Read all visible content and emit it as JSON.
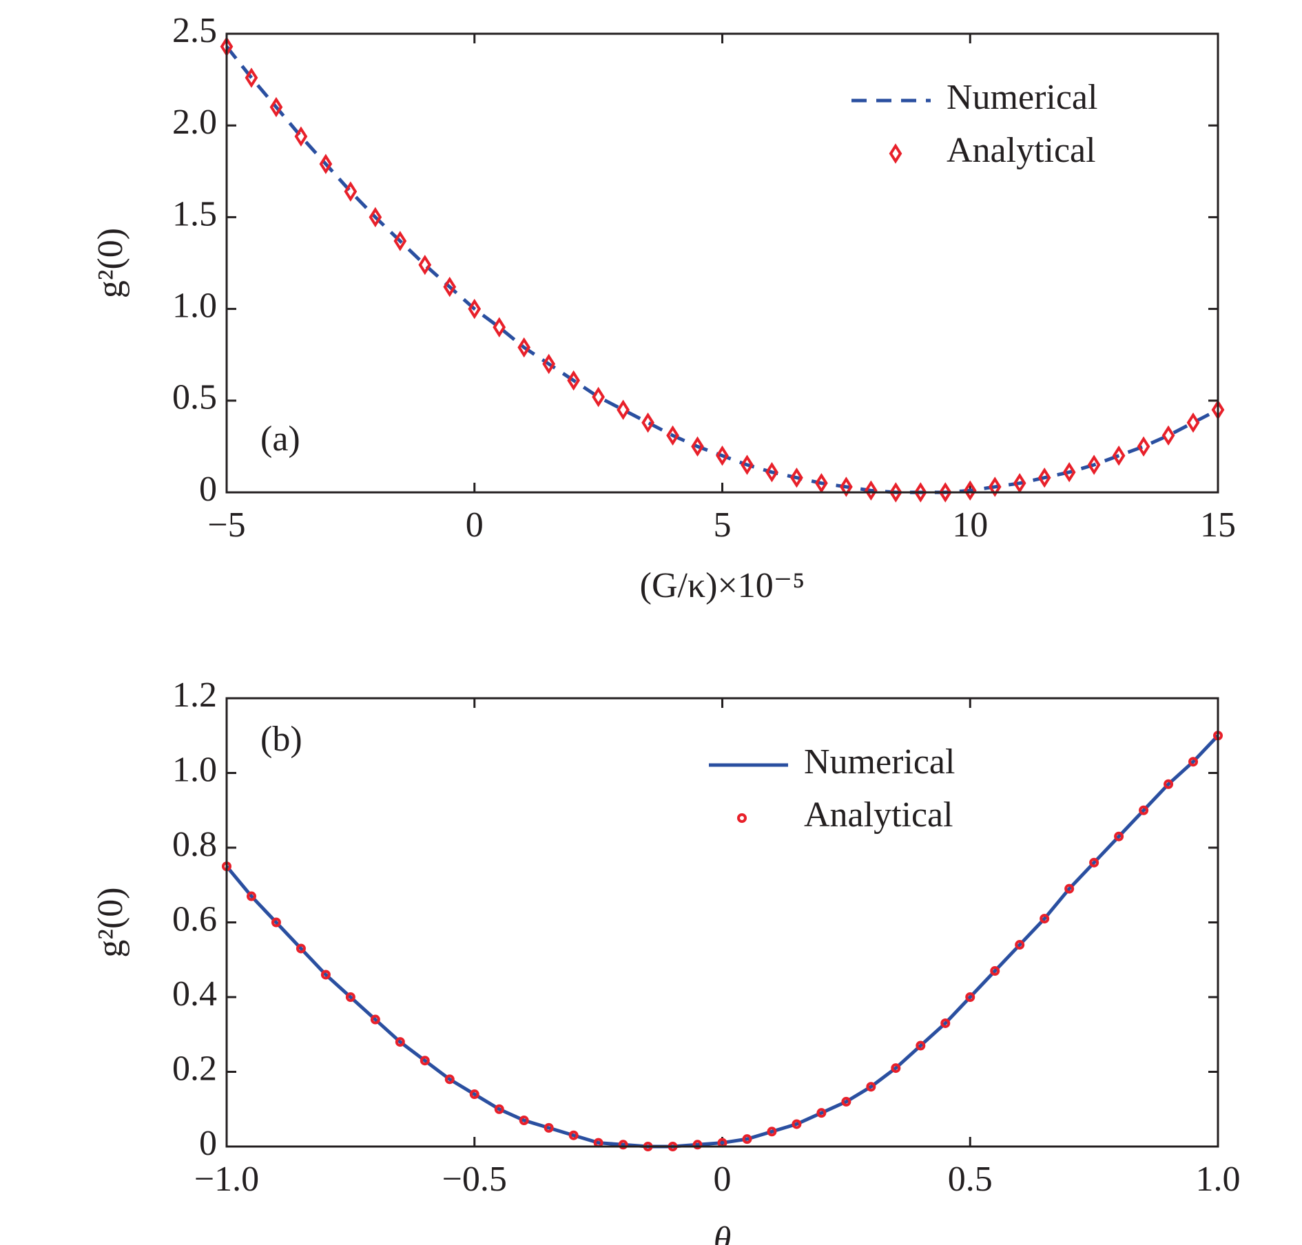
{
  "chart_data": [
    {
      "type": "line",
      "annotation": "(a)",
      "xlabel": "(G/κ)×10⁻⁵",
      "ylabel": "g²(0)",
      "x": [
        -5,
        -4.5,
        -4,
        -3.5,
        -3,
        -2.5,
        -2,
        -1.5,
        -1,
        -0.5,
        0,
        0.5,
        1,
        1.5,
        2,
        2.5,
        3,
        3.5,
        4,
        4.5,
        5,
        5.5,
        6,
        6.5,
        7,
        7.5,
        8,
        8.5,
        9,
        9.5,
        10,
        10.5,
        11,
        11.5,
        12,
        12.5,
        13,
        13.5,
        14,
        14.5,
        15
      ],
      "series": [
        {
          "name": "Numerical",
          "color": "#2a4fa0",
          "line_style": "dashed",
          "values": [
            2.43,
            2.26,
            2.1,
            1.94,
            1.79,
            1.64,
            1.5,
            1.37,
            1.24,
            1.12,
            1.0,
            0.9,
            0.79,
            0.7,
            0.61,
            0.52,
            0.45,
            0.38,
            0.31,
            0.25,
            0.2,
            0.15,
            0.11,
            0.08,
            0.05,
            0.03,
            0.01,
            0.0,
            0,
            0.0,
            0.01,
            0.03,
            0.05,
            0.08,
            0.11,
            0.15,
            0.2,
            0.25,
            0.31,
            0.38,
            0.45
          ]
        },
        {
          "name": "Analytical",
          "color": "#e8202a",
          "marker": "diamond",
          "values": [
            2.43,
            2.26,
            2.1,
            1.94,
            1.79,
            1.64,
            1.5,
            1.37,
            1.24,
            1.12,
            1.0,
            0.9,
            0.79,
            0.7,
            0.61,
            0.52,
            0.45,
            0.38,
            0.31,
            0.25,
            0.2,
            0.15,
            0.11,
            0.08,
            0.05,
            0.03,
            0.01,
            0.0,
            0,
            0.0,
            0.01,
            0.03,
            0.05,
            0.08,
            0.11,
            0.15,
            0.2,
            0.25,
            0.31,
            0.38,
            0.45
          ]
        }
      ],
      "xlim": [
        -5,
        15
      ],
      "xticks": [
        {
          "value": -5,
          "label": "−5"
        },
        0,
        5,
        10,
        15
      ],
      "ylim": [
        0,
        2.5
      ],
      "yticks": [
        0,
        0.5,
        {
          "value": 1,
          "label": "1.0"
        },
        1.5,
        {
          "value": 2,
          "label": "2.0"
        },
        2.5
      ],
      "legend": "upper right"
    },
    {
      "type": "line",
      "annotation": "(b)",
      "xlabel": "θ",
      "ylabel": "g²(0)",
      "x": [
        -1,
        -0.95,
        -0.9,
        -0.85,
        -0.8,
        -0.75,
        -0.7,
        -0.65,
        -0.6,
        -0.55,
        -0.5,
        -0.45,
        -0.4,
        -0.35,
        -0.3,
        -0.25,
        -0.2,
        -0.15,
        -0.1,
        -0.05,
        0,
        0.05,
        0.1,
        0.15,
        0.2,
        0.25,
        0.3,
        0.35,
        0.4,
        0.45,
        0.5,
        0.55,
        0.6,
        0.65,
        0.7,
        0.75,
        0.8,
        0.85,
        0.9,
        0.95,
        1
      ],
      "series": [
        {
          "name": "Numerical",
          "color": "#2a4fa0",
          "line_style": "solid",
          "values": [
            0.75,
            0.67,
            0.6,
            0.53,
            0.46,
            0.4,
            0.34,
            0.28,
            0.23,
            0.18,
            0.14,
            0.1,
            0.07,
            0.05,
            0.03,
            0.01,
            0.005,
            0.0,
            0.0,
            0.005,
            0.01,
            0.02,
            0.04,
            0.06,
            0.09,
            0.12,
            0.16,
            0.21,
            0.27,
            0.33,
            0.4,
            0.47,
            0.54,
            0.61,
            0.69,
            0.76,
            0.83,
            0.9,
            0.97,
            1.03,
            1.1
          ]
        },
        {
          "name": "Analytical",
          "color": "#e8202a",
          "marker": "circle",
          "values": [
            0.75,
            0.67,
            0.6,
            0.53,
            0.46,
            0.4,
            0.34,
            0.28,
            0.23,
            0.18,
            0.14,
            0.1,
            0.07,
            0.05,
            0.03,
            0.01,
            0.005,
            0.0,
            0.0,
            0.005,
            0.01,
            0.02,
            0.04,
            0.06,
            0.09,
            0.12,
            0.16,
            0.21,
            0.27,
            0.33,
            0.4,
            0.47,
            0.54,
            0.61,
            0.69,
            0.76,
            0.83,
            0.9,
            0.97,
            1.03,
            1.1
          ]
        }
      ],
      "xlim": [
        -1,
        1
      ],
      "xticks": [
        {
          "value": -1,
          "label": "−1.0"
        },
        {
          "value": -0.5,
          "label": "−0.5"
        },
        0,
        0.5,
        {
          "value": 1,
          "label": "1.0"
        }
      ],
      "ylim": [
        0,
        1.2
      ],
      "yticks": [
        0,
        0.2,
        0.4,
        0.6,
        0.8,
        {
          "value": 1,
          "label": "1.0"
        },
        1.2
      ],
      "legend": "upper center"
    }
  ]
}
